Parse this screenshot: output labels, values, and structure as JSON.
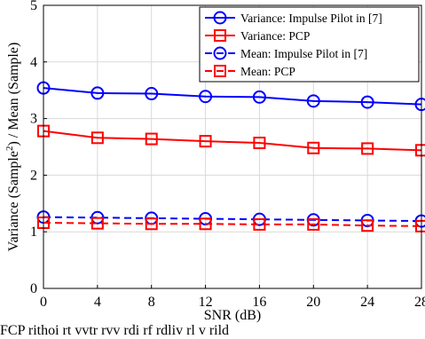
{
  "chart_data": {
    "type": "line",
    "x": [
      0,
      4,
      8,
      12,
      16,
      20,
      24,
      28
    ],
    "xlabel": "SNR (dB)",
    "ylabel_parts": [
      "Variance (Sample",
      "2",
      ") / Mean (Sample)"
    ],
    "xlim": [
      0,
      28
    ],
    "ylim": [
      0,
      5
    ],
    "xticks": [
      "0",
      "4",
      "8",
      "12",
      "16",
      "20",
      "24",
      "28"
    ],
    "yticks": [
      "0",
      "1",
      "2",
      "3",
      "4",
      "5"
    ],
    "grid": true,
    "legend_position": "top-right",
    "series": [
      {
        "name": "Variance: Impulse Pilot in [7]",
        "color": "#0000ff",
        "line_style": "solid",
        "marker": "circle",
        "values": [
          3.54,
          3.45,
          3.44,
          3.39,
          3.38,
          3.31,
          3.29,
          3.25
        ]
      },
      {
        "name": "Variance: PCP",
        "color": "#ff0000",
        "line_style": "solid",
        "marker": "square",
        "values": [
          2.78,
          2.66,
          2.64,
          2.6,
          2.57,
          2.48,
          2.47,
          2.44
        ]
      },
      {
        "name": "Mean: Impulse Pilot in [7]",
        "color": "#0000ff",
        "line_style": "dashed",
        "marker": "circle",
        "values": [
          1.26,
          1.25,
          1.24,
          1.23,
          1.22,
          1.21,
          1.2,
          1.19
        ]
      },
      {
        "name": "Mean: PCP",
        "color": "#ff0000",
        "line_style": "dashed",
        "marker": "square",
        "values": [
          1.16,
          1.15,
          1.14,
          1.14,
          1.13,
          1.13,
          1.11,
          1.1
        ]
      }
    ]
  },
  "caption_fragment": "FCP rithoi rt     vvtr rvv  rdi rf rdliv rl  v  rild"
}
